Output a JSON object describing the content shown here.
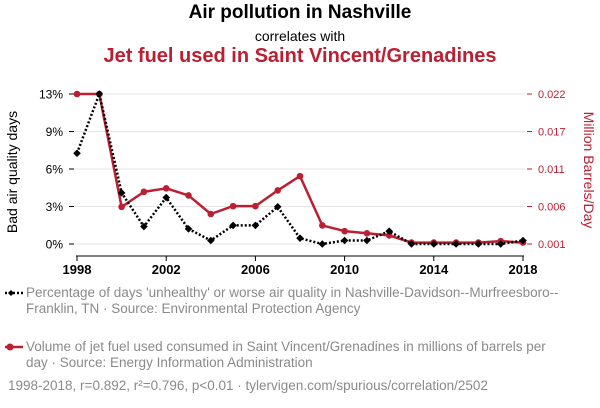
{
  "chart_data": {
    "type": "line",
    "title": "Air pollution in Nashville",
    "subtitle": "correlates with",
    "title2": "Jet fuel used in Saint Vincent/Grenadines",
    "x": [
      1998,
      1999,
      2000,
      2001,
      2002,
      2003,
      2004,
      2005,
      2006,
      2007,
      2008,
      2009,
      2010,
      2011,
      2012,
      2013,
      2014,
      2015,
      2016,
      2017,
      2018
    ],
    "xlim": [
      1998,
      2018
    ],
    "xticks": [
      "1998",
      "2002",
      "2006",
      "2010",
      "2014",
      "2018"
    ],
    "ylabel_left": "Bad air quality days",
    "ylabel_right": "Million Barrels/Day",
    "yticks_left": [
      "0%",
      "3%",
      "6%",
      "9%",
      "13%"
    ],
    "yticks_right": [
      "0.001",
      "0.006",
      "0.011",
      "0.017",
      "0.022"
    ],
    "series": [
      {
        "name": "Percentage of days 'unhealthy' or worse air quality in Nashville-Davidson--Murfreesboro--Franklin, TN · Source: Environmental Protection Agency",
        "axis": "left",
        "color": "#000000",
        "style": "dotted",
        "marker": "diamond",
        "ylim": [
          0,
          12.9
        ],
        "values": [
          7.8,
          12.9,
          4.4,
          1.5,
          4.0,
          1.3,
          0.3,
          1.6,
          1.6,
          3.2,
          0.5,
          0.0,
          0.3,
          0.3,
          1.1,
          0.0,
          0.0,
          0.0,
          0.0,
          0.0,
          0.3
        ]
      },
      {
        "name": "Volume of jet fuel used consumed in Saint Vincent/Grenadines in millions of barrels per day · Source: Energy Information Administration",
        "axis": "right",
        "color": "#bd1f32",
        "style": "solid",
        "marker": "circle",
        "ylim": [
          0.001,
          0.022
        ],
        "values": [
          0.022,
          0.022,
          0.0062,
          0.0083,
          0.0088,
          0.0078,
          0.0052,
          0.0063,
          0.0063,
          0.0085,
          0.0105,
          0.0036,
          0.0028,
          0.0025,
          0.0022,
          0.0012,
          0.0012,
          0.0012,
          0.0012,
          0.0014,
          0.0012
        ]
      }
    ],
    "footer": "1998-2018, r=0.892, r²=0.796, p<0.01 · tylervigen.com/spurious/correlation/2502"
  }
}
